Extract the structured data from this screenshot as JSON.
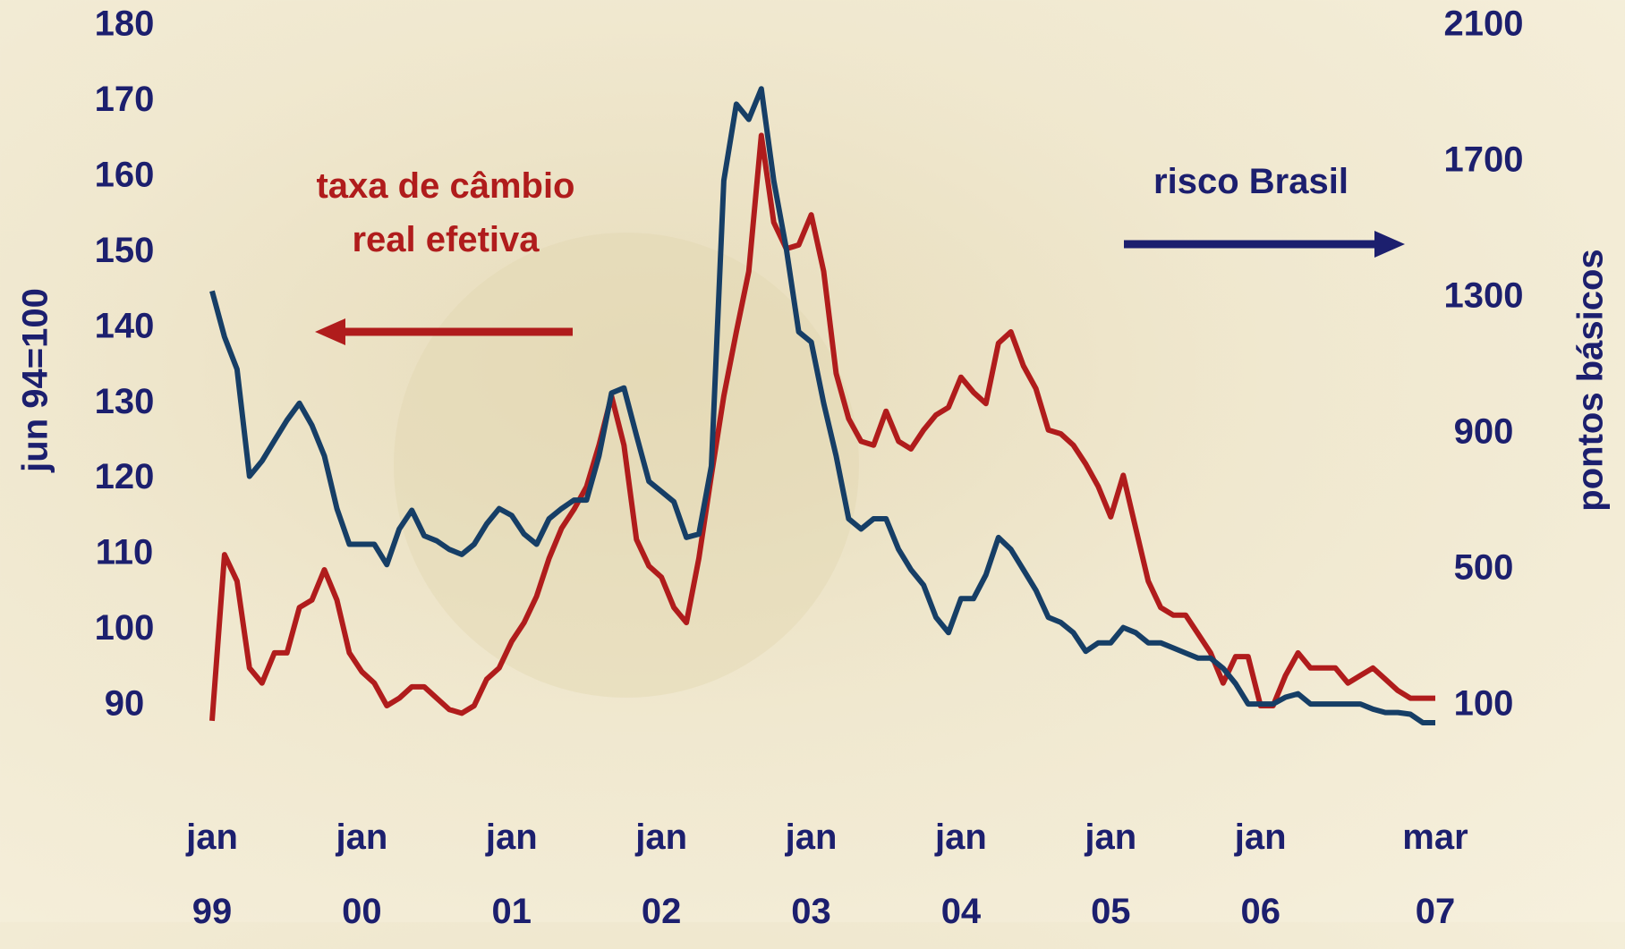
{
  "chart_data": {
    "type": "line",
    "ylabel": "jun 94=100",
    "y2label": "pontos básicos",
    "categories": [
      "jan 99",
      null,
      null,
      null,
      null,
      null,
      null,
      null,
      null,
      null,
      null,
      null,
      "jan 00",
      null,
      null,
      null,
      null,
      null,
      null,
      null,
      null,
      null,
      null,
      null,
      "jan 01",
      null,
      null,
      null,
      null,
      null,
      null,
      null,
      null,
      null,
      null,
      null,
      "jan 02",
      null,
      null,
      null,
      null,
      null,
      null,
      null,
      null,
      null,
      null,
      null,
      "jan 03",
      null,
      null,
      null,
      null,
      null,
      null,
      null,
      null,
      null,
      null,
      null,
      "jan 04",
      null,
      null,
      null,
      null,
      null,
      null,
      null,
      null,
      null,
      null,
      null,
      "jan 05",
      null,
      null,
      null,
      null,
      null,
      null,
      null,
      null,
      null,
      null,
      null,
      "jan 06",
      null,
      null,
      null,
      null,
      null,
      null,
      null,
      null,
      null,
      null,
      null,
      null,
      null,
      "mar 07"
    ],
    "series": [
      {
        "name": "taxa de câmbio real efetiva",
        "color": "#b01c1c",
        "values": [
          88,
          110,
          106.5,
          95,
          93,
          97,
          97,
          103,
          104,
          108,
          104,
          97,
          94.5,
          93,
          90,
          91,
          92.5,
          92.5,
          91,
          89.5,
          89,
          90,
          93.5,
          95,
          98.5,
          101,
          104.5,
          109.5,
          113.5,
          116,
          119,
          124.5,
          131,
          124.5,
          112,
          108.5,
          107,
          103,
          101,
          109.5,
          120.5,
          131,
          139.5,
          147.5,
          165.5,
          154,
          150.5,
          151,
          155,
          147.5,
          134,
          128,
          125,
          124.5,
          129,
          125,
          124,
          126.5,
          128.5,
          129.5,
          133.5,
          131.5,
          130,
          138,
          139.5,
          135,
          132,
          126.5,
          126,
          124.5,
          122,
          119,
          115,
          120.5,
          113.5,
          106.5,
          103,
          102,
          102,
          99.5,
          97,
          93,
          96.5,
          96.5,
          90,
          90,
          94,
          97,
          95,
          95,
          95,
          93,
          94,
          95,
          93.5,
          92,
          91,
          91,
          91
        ]
      },
      {
        "name": "risco Brasil",
        "color": "#163e66",
        "axis": "y2",
        "values": [
          1320,
          1185,
          1090,
          775,
          820,
          880,
          940,
          990,
          925,
          835,
          680,
          575,
          575,
          575,
          515,
          620,
          675,
          600,
          585,
          560,
          545,
          575,
          635,
          680,
          660,
          605,
          575,
          650,
          680,
          705,
          705,
          835,
          1020,
          1035,
          895,
          760,
          730,
          700,
          595,
          605,
          805,
          1645,
          1870,
          1825,
          1915,
          1645,
          1445,
          1200,
          1170,
          990,
          835,
          650,
          620,
          650,
          650,
          560,
          500,
          455,
          360,
          315,
          415,
          415,
          485,
          595,
          560,
          500,
          440,
          360,
          345,
          315,
          260,
          285,
          285,
          330,
          315,
          285,
          285,
          270,
          255,
          240,
          240,
          210,
          165,
          105,
          105,
          105,
          125,
          135,
          105,
          105,
          105,
          105,
          105,
          90,
          80,
          80,
          75,
          50,
          50
        ]
      }
    ],
    "ylim": [
      90,
      180
    ],
    "yticks": [
      90,
      100,
      110,
      120,
      130,
      140,
      150,
      160,
      170,
      180
    ],
    "y2lim": [
      100,
      2100
    ],
    "y2ticks": [
      100,
      500,
      900,
      1300,
      1700,
      2100
    ]
  }
}
